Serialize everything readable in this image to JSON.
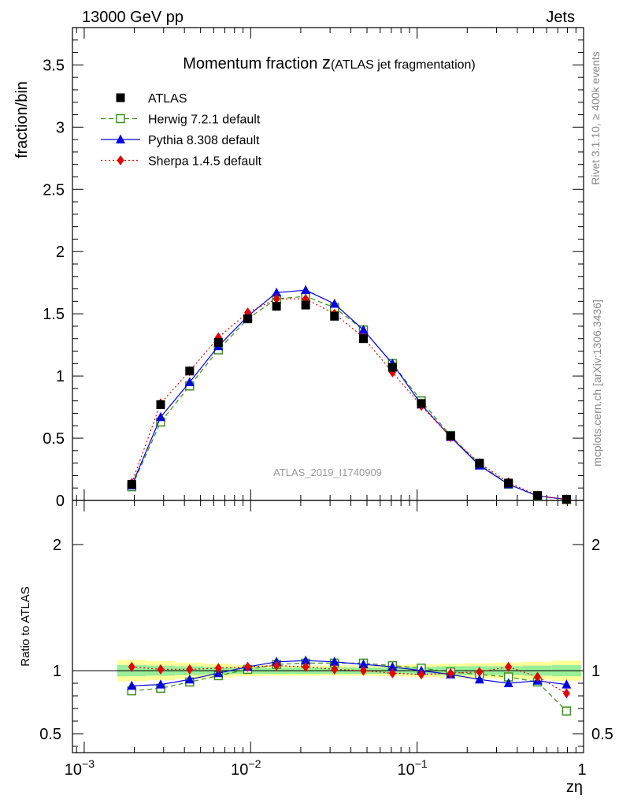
{
  "header": {
    "left": "13000 GeV pp",
    "right": "Jets"
  },
  "side_labels": {
    "rivet": "Rivet 3.1.10, ≥ 400k events",
    "mcplots": "mcplots.cern.ch [arXiv:1306.3436]"
  },
  "chart_data": {
    "type": "scatter",
    "title_main": "Momentum fraction",
    "title_z": "z",
    "title_sub": "(ATLAS jet fragmentation)",
    "watermark": "ATLAS_2019_I1740909",
    "xlabel": "zη",
    "ylabel_top": "fraction/bin",
    "ylabel_bottom": "Ratio to ATLAS",
    "xscale": "log",
    "xlim": [
      0.00085,
      1.0
    ],
    "ylim_top": [
      0,
      3.8
    ],
    "ylim_bottom": [
      0.35,
      2.35
    ],
    "x_ticks": [
      {
        "value": 0.001,
        "base": "10",
        "exp": "−3"
      },
      {
        "value": 0.01,
        "base": "10",
        "exp": "−2"
      },
      {
        "value": 0.1,
        "base": "10",
        "exp": "−1"
      },
      {
        "value": 1,
        "base": "1",
        "exp": ""
      }
    ],
    "y_ticks_top": [
      {
        "value": 0,
        "label": "0"
      },
      {
        "value": 0.5,
        "label": "0.5"
      },
      {
        "value": 1,
        "label": "1"
      },
      {
        "value": 1.5,
        "label": "1.5"
      },
      {
        "value": 2,
        "label": "2"
      },
      {
        "value": 2.5,
        "label": "2.5"
      },
      {
        "value": 3,
        "label": "3"
      },
      {
        "value": 3.5,
        "label": "3.5"
      }
    ],
    "y_ticks_bottom": [
      {
        "value": 0.5,
        "label": "0.5"
      },
      {
        "value": 1,
        "label": "1"
      },
      {
        "value": 2,
        "label": "2"
      }
    ],
    "x": [
      0.00193,
      0.00288,
      0.0043,
      0.0064,
      0.0096,
      0.0143,
      0.0214,
      0.0319,
      0.0476,
      0.0711,
      0.106,
      0.159,
      0.237,
      0.354,
      0.529,
      0.79
    ],
    "x_edges": [
      0.00158,
      0.00236,
      0.00352,
      0.00525,
      0.00784,
      0.0117,
      0.0175,
      0.0261,
      0.039,
      0.0582,
      0.0869,
      0.13,
      0.194,
      0.289,
      0.432,
      0.645,
      0.965
    ],
    "band_inner": [
      0.045,
      0.04,
      0.035,
      0.03,
      0.025,
      0.025,
      0.025,
      0.025,
      0.025,
      0.025,
      0.03,
      0.035,
      0.035,
      0.035,
      0.04,
      0.045
    ],
    "band_outer": [
      0.085,
      0.075,
      0.065,
      0.055,
      0.045,
      0.04,
      0.04,
      0.04,
      0.04,
      0.045,
      0.05,
      0.055,
      0.06,
      0.065,
      0.07,
      0.08
    ],
    "series": [
      {
        "name": "ATLAS",
        "color": "#000000",
        "marker": "square-filled",
        "line": "none",
        "values": [
          0.13,
          0.77,
          1.04,
          1.27,
          1.46,
          1.56,
          1.57,
          1.48,
          1.3,
          1.07,
          0.78,
          0.52,
          0.3,
          0.14,
          0.04,
          0.01
        ]
      },
      {
        "name": "Herwig 7.2.1 default",
        "color": "#3a8f1e",
        "marker": "square-open",
        "line": "dashed",
        "values": [
          0.11,
          0.63,
          0.92,
          1.21,
          1.46,
          1.62,
          1.64,
          1.55,
          1.37,
          1.1,
          0.8,
          0.52,
          0.29,
          0.13,
          0.036,
          0.007
        ],
        "ratio": [
          0.84,
          0.86,
          0.91,
          0.96,
          1.01,
          1.05,
          1.06,
          1.06,
          1.06,
          1.04,
          1.02,
          0.99,
          0.97,
          0.95,
          0.91,
          0.68
        ]
      },
      {
        "name": "Pythia 8.308 default",
        "color": "#0000e0",
        "marker": "triangle",
        "line": "solid",
        "values": [
          0.12,
          0.67,
          0.95,
          1.24,
          1.48,
          1.67,
          1.69,
          1.58,
          1.37,
          1.1,
          0.77,
          0.51,
          0.28,
          0.13,
          0.036,
          0.009
        ],
        "ratio": [
          0.88,
          0.89,
          0.93,
          0.98,
          1.03,
          1.07,
          1.08,
          1.07,
          1.05,
          1.03,
          1.0,
          0.97,
          0.93,
          0.9,
          0.92,
          0.89
        ]
      },
      {
        "name": "Sherpa 1.4.5 default",
        "color": "#e00000",
        "marker": "diamond",
        "line": "dotted",
        "values": [
          0.14,
          0.78,
          1.04,
          1.31,
          1.51,
          1.62,
          1.62,
          1.5,
          1.31,
          1.03,
          0.76,
          0.51,
          0.3,
          0.145,
          0.038,
          0.008
        ],
        "ratio": [
          1.03,
          1.01,
          1.01,
          1.02,
          1.03,
          1.04,
          1.03,
          1.01,
          1.0,
          0.98,
          0.97,
          0.98,
          0.99,
          1.03,
          0.95,
          0.82
        ]
      }
    ]
  }
}
